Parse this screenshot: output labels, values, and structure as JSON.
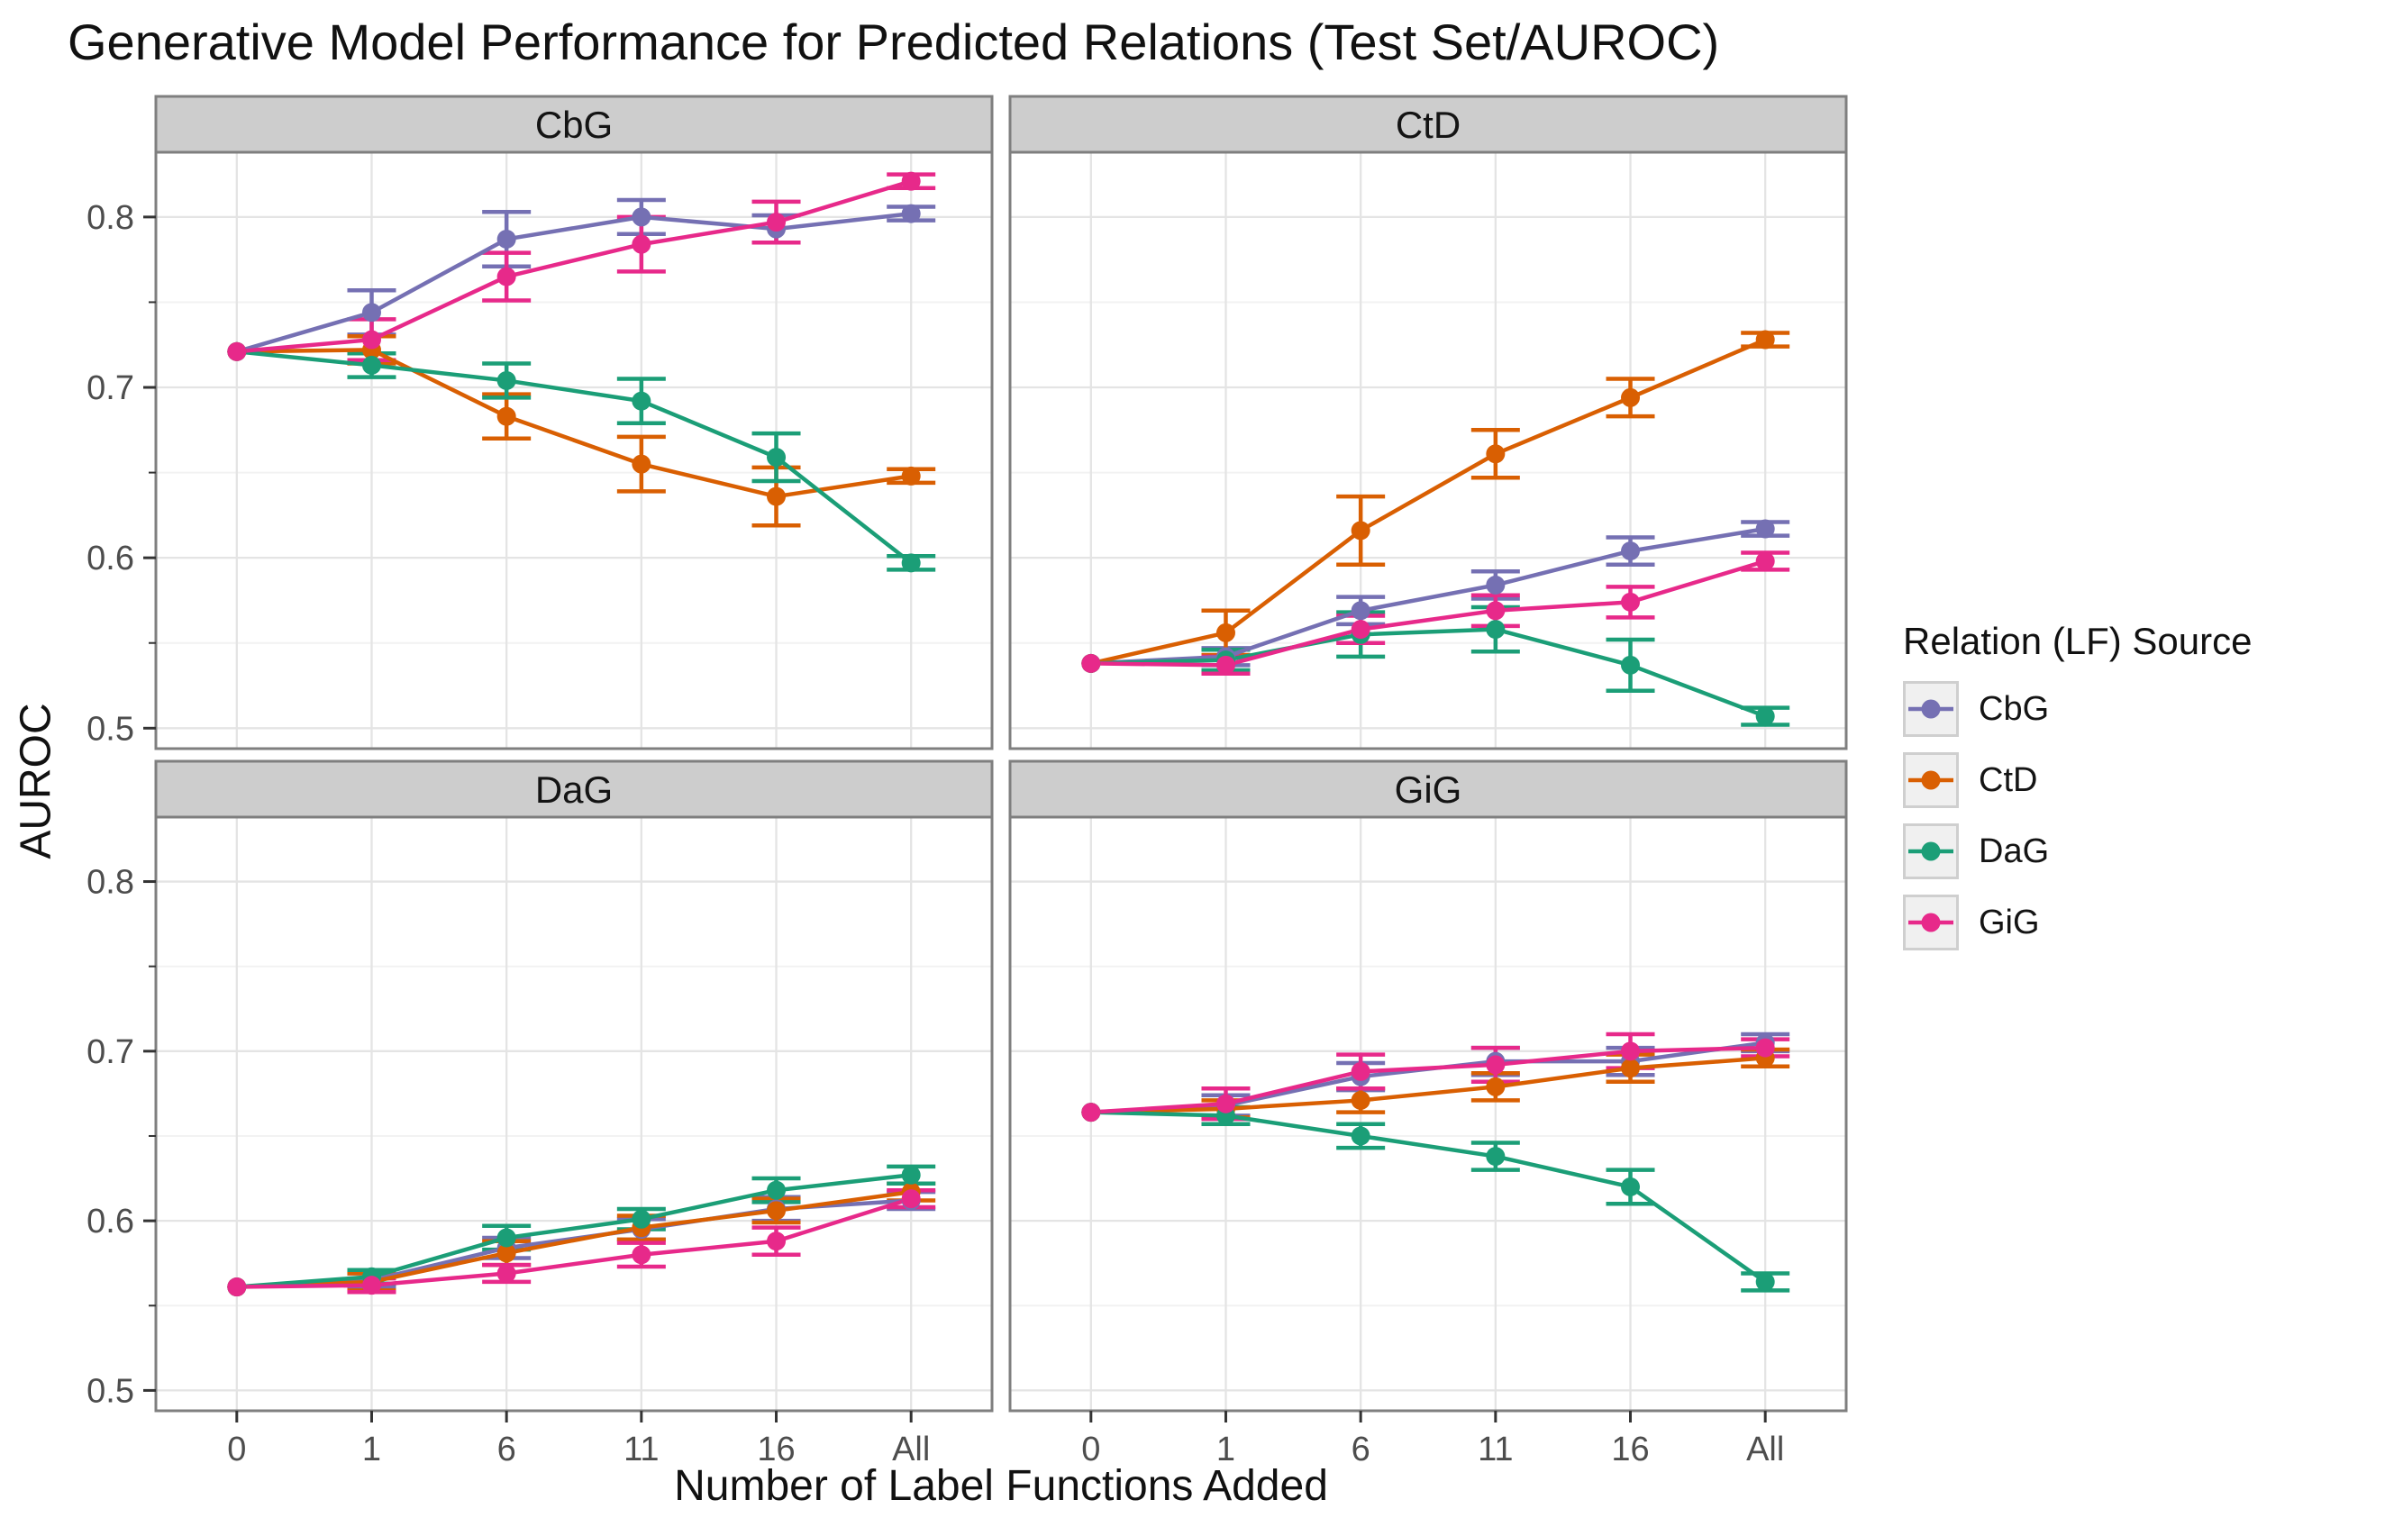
{
  "title": "Generative Model Performance for Predicted Relations (Test Set/AUROC)",
  "axes": {
    "x_label": "Number of Label Functions Added",
    "y_label": "AUROC"
  },
  "legend": {
    "title": "Relation (LF) Source",
    "entries": [
      {
        "label": "CbG",
        "color": "#7570B3"
      },
      {
        "label": "CtD",
        "color": "#D95F02"
      },
      {
        "label": "DaG",
        "color": "#1B9E77"
      },
      {
        "label": "GiG",
        "color": "#E7298A"
      }
    ]
  },
  "chart_data": {
    "type": "line",
    "title": "Generative Model Performance for Predicted Relations (Test Set/AUROC)",
    "xlabel": "Number of Label Functions Added",
    "ylabel": "AUROC",
    "x_categories": [
      "0",
      "1",
      "6",
      "11",
      "16",
      "All"
    ],
    "ylim": [
      0.488,
      0.838
    ],
    "y_major_ticks": [
      {
        "value": 0.8,
        "label": "0.8"
      },
      {
        "value": 0.7,
        "label": "0.7"
      },
      {
        "value": 0.6,
        "label": "0.6"
      },
      {
        "value": 0.5,
        "label": "0.5"
      }
    ],
    "y_minor_ticks": [
      0.75,
      0.65,
      0.55
    ],
    "grid": true,
    "error_bars": true,
    "legend_position": "right",
    "legend_title": "Relation (LF) Source",
    "series_colors": {
      "CbG": "#7570B3",
      "CtD": "#D95F02",
      "DaG": "#1B9E77",
      "GiG": "#E7298A"
    },
    "facets": [
      {
        "name": "CbG",
        "series": [
          {
            "name": "CbG",
            "values": [
              0.721,
              0.744,
              0.787,
              0.8,
              0.793,
              0.802
            ],
            "errors": [
              0,
              0.013,
              0.016,
              0.01,
              0.008,
              0.004
            ]
          },
          {
            "name": "CtD",
            "values": [
              0.721,
              0.722,
              0.683,
              0.655,
              0.636,
              0.648
            ],
            "errors": [
              0,
              0.008,
              0.013,
              0.016,
              0.017,
              0.004
            ]
          },
          {
            "name": "DaG",
            "values": [
              0.721,
              0.713,
              0.704,
              0.692,
              0.659,
              0.597
            ],
            "errors": [
              0,
              0.007,
              0.01,
              0.013,
              0.014,
              0.004
            ]
          },
          {
            "name": "GiG",
            "values": [
              0.721,
              0.728,
              0.765,
              0.784,
              0.797,
              0.821
            ],
            "errors": [
              0,
              0.012,
              0.014,
              0.016,
              0.012,
              0.004
            ]
          }
        ]
      },
      {
        "name": "CtD",
        "series": [
          {
            "name": "CbG",
            "values": [
              0.538,
              0.542,
              0.569,
              0.584,
              0.604,
              0.617
            ],
            "errors": [
              0,
              0.005,
              0.008,
              0.008,
              0.008,
              0.004
            ]
          },
          {
            "name": "CtD",
            "values": [
              0.538,
              0.556,
              0.616,
              0.661,
              0.694,
              0.728
            ],
            "errors": [
              0,
              0.013,
              0.02,
              0.014,
              0.011,
              0.004
            ]
          },
          {
            "name": "DaG",
            "values": [
              0.538,
              0.54,
              0.555,
              0.558,
              0.537,
              0.507
            ],
            "errors": [
              0,
              0.006,
              0.013,
              0.013,
              0.015,
              0.005
            ]
          },
          {
            "name": "GiG",
            "values": [
              0.538,
              0.537,
              0.558,
              0.569,
              0.574,
              0.598
            ],
            "errors": [
              0,
              0.005,
              0.008,
              0.009,
              0.009,
              0.005
            ]
          }
        ]
      },
      {
        "name": "DaG",
        "series": [
          {
            "name": "CbG",
            "values": [
              0.561,
              0.565,
              0.584,
              0.595,
              0.607,
              0.612
            ],
            "errors": [
              0,
              0.004,
              0.006,
              0.006,
              0.007,
              0.005
            ]
          },
          {
            "name": "CtD",
            "values": [
              0.561,
              0.564,
              0.581,
              0.596,
              0.606,
              0.617
            ],
            "errors": [
              0,
              0.005,
              0.007,
              0.007,
              0.007,
              0.005
            ]
          },
          {
            "name": "DaG",
            "values": [
              0.561,
              0.567,
              0.59,
              0.601,
              0.618,
              0.627
            ],
            "errors": [
              0,
              0.004,
              0.007,
              0.006,
              0.007,
              0.005
            ]
          },
          {
            "name": "GiG",
            "values": [
              0.561,
              0.562,
              0.569,
              0.58,
              0.588,
              0.613
            ],
            "errors": [
              0,
              0.004,
              0.005,
              0.007,
              0.008,
              0.005
            ]
          }
        ]
      },
      {
        "name": "GiG",
        "series": [
          {
            "name": "CbG",
            "values": [
              0.664,
              0.668,
              0.685,
              0.694,
              0.694,
              0.705
            ],
            "errors": [
              0,
              0.006,
              0.008,
              0.008,
              0.008,
              0.005
            ]
          },
          {
            "name": "CtD",
            "values": [
              0.664,
              0.666,
              0.671,
              0.679,
              0.69,
              0.696
            ],
            "errors": [
              0,
              0.005,
              0.007,
              0.008,
              0.008,
              0.005
            ]
          },
          {
            "name": "DaG",
            "values": [
              0.664,
              0.662,
              0.65,
              0.638,
              0.62,
              0.564
            ],
            "errors": [
              0,
              0.005,
              0.007,
              0.008,
              0.01,
              0.005
            ]
          },
          {
            "name": "GiG",
            "values": [
              0.664,
              0.669,
              0.688,
              0.692,
              0.7,
              0.702
            ],
            "errors": [
              0,
              0.009,
              0.01,
              0.01,
              0.01,
              0.005
            ]
          }
        ]
      }
    ],
    "style": {
      "strip_fill": "#cdcdcd",
      "strip_border": "#7f7f7f",
      "strip_text": "#141414",
      "panel_border": "#7f7f7f",
      "grid_major": "#e4e4e4",
      "grid_minor": "#f2f2f2",
      "tick_color": "#333333",
      "tick_label_color": "#4d4d4d"
    }
  }
}
